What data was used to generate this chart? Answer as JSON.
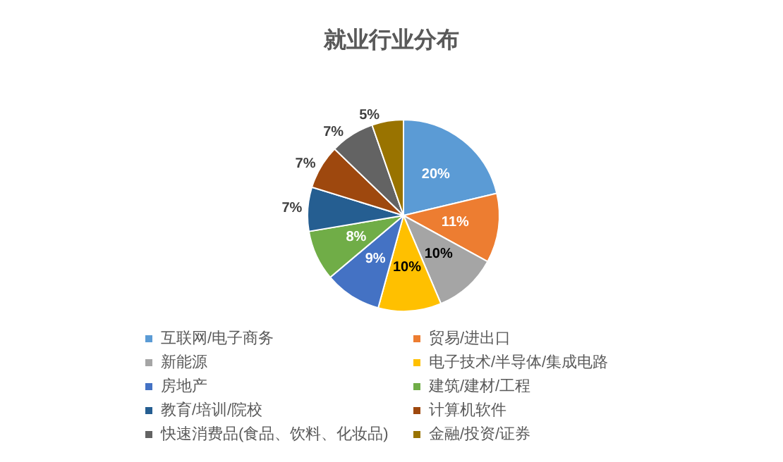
{
  "chart_data": {
    "type": "pie",
    "title": "就业行业分布",
    "categories": [
      "互联网/电子商务",
      "贸易/进出口",
      "新能源",
      "电子技术/半导体/集成电路",
      "房地产",
      "建筑/建材/工程",
      "教育/培训/院校",
      "计算机软件",
      "快速消费品(食品、饮料、化妆品)",
      "金融/投资/证券"
    ],
    "values": [
      20,
      11,
      10,
      10,
      9,
      8,
      7,
      7,
      7,
      5
    ],
    "colors": [
      "#5b9bd5",
      "#ed7d31",
      "#a5a5a5",
      "#ffc000",
      "#4472c4",
      "#70ad47",
      "#255e91",
      "#9e480e",
      "#636363",
      "#997300"
    ],
    "value_labels": [
      "20%",
      "11%",
      "10%",
      "10%",
      "9%",
      "8%",
      "7%",
      "7%",
      "7%",
      "5%"
    ],
    "legend": "bottom"
  }
}
